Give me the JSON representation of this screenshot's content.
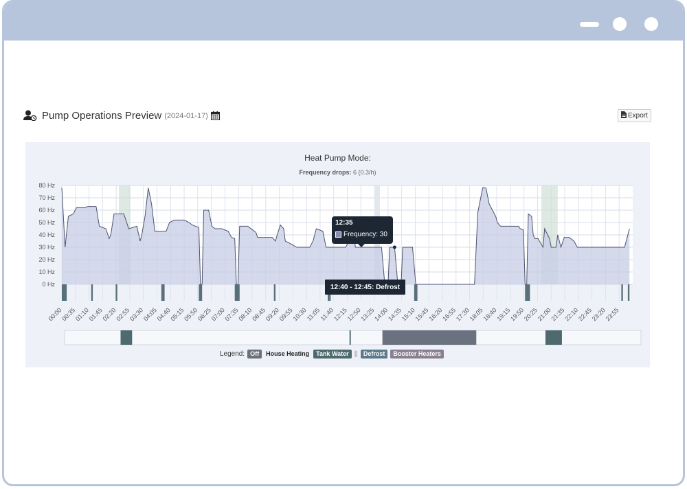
{
  "header": {
    "title": "Pump Operations Preview",
    "date": "(2024-01-17)",
    "export_label": "Export"
  },
  "chart_data": {
    "type": "area",
    "title": "Heat Pump Mode:",
    "subtitle_label": "Frequency drops:",
    "subtitle_value": "6 (0.3/h)",
    "ylabel": "",
    "y_unit": "Hz",
    "ylim": [
      0,
      80
    ],
    "y_ticks": [
      "0 Hz",
      "10 Hz",
      "20 Hz",
      "30 Hz",
      "40 Hz",
      "50 Hz",
      "60 Hz",
      "70 Hz",
      "80 Hz"
    ],
    "x_ticks": [
      "00:00",
      "00:35",
      "01:10",
      "01:45",
      "02:20",
      "02:55",
      "03:30",
      "04:05",
      "04:40",
      "05:15",
      "05:50",
      "06:25",
      "07:00",
      "07:35",
      "08:10",
      "08:45",
      "09:20",
      "09:55",
      "10:30",
      "11:05",
      "11:40",
      "12:15",
      "12:50",
      "13:25",
      "14:00",
      "14:35",
      "15:10",
      "15:45",
      "16:20",
      "16:55",
      "17:30",
      "18:05",
      "18:40",
      "19:15",
      "19:50",
      "20:25",
      "21:00",
      "21:35",
      "22:10",
      "22:45",
      "23:20",
      "23:55"
    ],
    "grid": true,
    "series": [
      {
        "name": "Frequency",
        "color": "#8a8fb0",
        "points": [
          [
            0,
            78
          ],
          [
            10,
            30
          ],
          [
            20,
            55
          ],
          [
            35,
            57
          ],
          [
            45,
            62
          ],
          [
            70,
            62
          ],
          [
            80,
            63
          ],
          [
            105,
            63
          ],
          [
            115,
            47
          ],
          [
            135,
            45
          ],
          [
            145,
            37
          ],
          [
            150,
            40
          ],
          [
            160,
            57
          ],
          [
            180,
            57
          ],
          [
            190,
            57
          ],
          [
            205,
            45
          ],
          [
            230,
            47
          ],
          [
            240,
            35
          ],
          [
            245,
            40
          ],
          [
            255,
            55
          ],
          [
            265,
            78
          ],
          [
            275,
            65
          ],
          [
            285,
            43
          ],
          [
            320,
            43
          ],
          [
            330,
            50
          ],
          [
            345,
            52
          ],
          [
            375,
            52
          ],
          [
            390,
            50
          ],
          [
            400,
            48
          ],
          [
            420,
            46
          ],
          [
            425,
            0
          ],
          [
            430,
            0
          ],
          [
            435,
            60
          ],
          [
            450,
            60
          ],
          [
            460,
            47
          ],
          [
            470,
            45
          ],
          [
            490,
            45
          ],
          [
            510,
            43
          ],
          [
            520,
            38
          ],
          [
            530,
            37
          ],
          [
            535,
            0
          ],
          [
            540,
            0
          ],
          [
            545,
            47
          ],
          [
            570,
            47
          ],
          [
            585,
            44
          ],
          [
            595,
            42
          ],
          [
            600,
            38
          ],
          [
            625,
            38
          ],
          [
            645,
            38
          ],
          [
            655,
            35
          ],
          [
            660,
            40
          ],
          [
            670,
            48
          ],
          [
            680,
            45
          ],
          [
            685,
            35
          ],
          [
            700,
            33
          ],
          [
            720,
            30
          ],
          [
            740,
            30
          ],
          [
            760,
            30
          ],
          [
            770,
            35
          ],
          [
            780,
            45
          ],
          [
            800,
            43
          ],
          [
            810,
            30
          ],
          [
            850,
            30
          ],
          [
            870,
            30
          ],
          [
            880,
            35
          ],
          [
            890,
            45
          ],
          [
            895,
            40
          ],
          [
            900,
            30
          ],
          [
            960,
            30
          ],
          [
            980,
            30
          ],
          [
            990,
            0
          ],
          [
            1000,
            0
          ],
          [
            1005,
            30
          ],
          [
            1020,
            30
          ],
          [
            1030,
            0
          ],
          [
            1040,
            0
          ],
          [
            1045,
            30
          ],
          [
            1060,
            30
          ],
          [
            1065,
            30
          ],
          [
            1075,
            30
          ],
          [
            1085,
            0
          ],
          [
            1265,
            0
          ],
          [
            1275,
            58
          ],
          [
            1290,
            78
          ],
          [
            1300,
            78
          ],
          [
            1310,
            65
          ],
          [
            1320,
            60
          ],
          [
            1330,
            55
          ],
          [
            1335,
            50
          ],
          [
            1345,
            47
          ],
          [
            1400,
            47
          ],
          [
            1405,
            45
          ],
          [
            1415,
            44
          ],
          [
            1420,
            0
          ],
          [
            1425,
            0
          ],
          [
            1430,
            57
          ],
          [
            1440,
            55
          ],
          [
            1445,
            40
          ],
          [
            1450,
            37
          ],
          [
            1460,
            37
          ],
          [
            1475,
            30
          ],
          [
            1480,
            45
          ],
          [
            1495,
            37
          ],
          [
            1500,
            30
          ],
          [
            1515,
            30
          ],
          [
            1520,
            40
          ],
          [
            1530,
            30
          ],
          [
            1540,
            38
          ],
          [
            1555,
            38
          ],
          [
            1570,
            35
          ],
          [
            1580,
            30
          ],
          [
            1600,
            30
          ],
          [
            1620,
            30
          ],
          [
            1630,
            30
          ],
          [
            1660,
            30
          ],
          [
            1670,
            30
          ],
          [
            1695,
            30
          ],
          [
            1710,
            30
          ],
          [
            1725,
            30
          ],
          [
            1740,
            45
          ]
        ]
      }
    ],
    "defrost_bars": [
      [
        0,
        15
      ],
      [
        90,
        95
      ],
      [
        165,
        170
      ],
      [
        305,
        315
      ],
      [
        420,
        430
      ],
      [
        530,
        545
      ],
      [
        650,
        655
      ],
      [
        820,
        823
      ],
      [
        815,
        820
      ],
      [
        1080,
        1090
      ],
      [
        1420,
        1435
      ],
      [
        1715,
        1720
      ],
      [
        1735,
        1740
      ]
    ],
    "booster_bands": [
      [
        175,
        210
      ],
      [
        1470,
        1520
      ]
    ],
    "highlight_band": [
      960,
      975
    ],
    "timeline": {
      "tank_water": [
        [
          170,
          205
        ],
        [
          1460,
          1510
        ]
      ],
      "defrost_marker": [
        865,
        870
      ],
      "booster": [
        965,
        1250
      ]
    },
    "tooltip": {
      "time": "12:35",
      "label": "Frequency: 30"
    },
    "event_label": "12:40 - 12:45: Defrost"
  },
  "legend": {
    "label": "Legend:",
    "off": "Off",
    "house": "House Heating",
    "tank": "Tank Water",
    "sep": "||",
    "defrost": "Defrost",
    "booster": "Booster Heaters"
  }
}
